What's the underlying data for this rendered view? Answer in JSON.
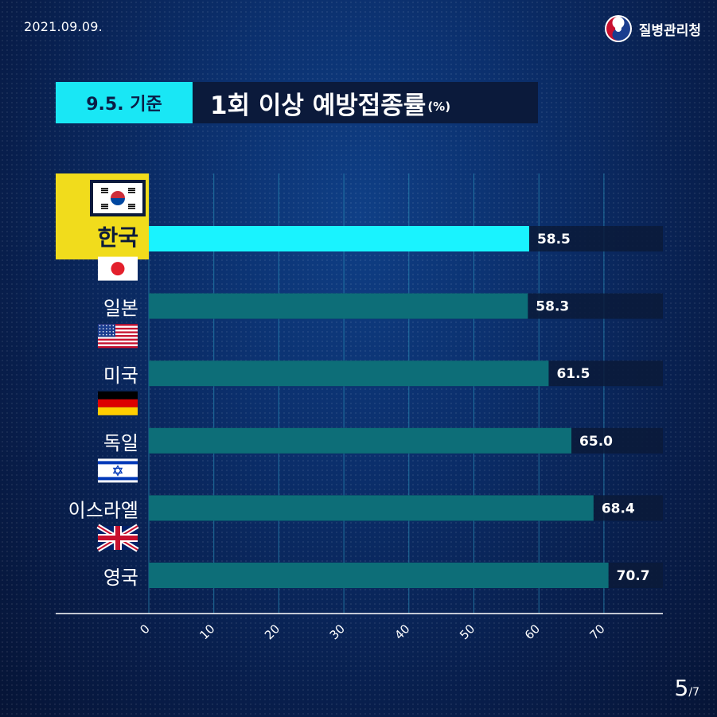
{
  "header": {
    "date": "2021.09.09.",
    "brand": "질병관리청",
    "badge": "9.5. 기준",
    "title": "1회 이상 예방접종률",
    "title_unit": "(%)"
  },
  "page": {
    "current": "5",
    "total": "/7"
  },
  "colors": {
    "highlight_bar": "#19f3ff",
    "bar": "#0d6e78",
    "track": "#0a1a38",
    "highlight_label_bg": "#f1dc1c",
    "gridline": "#2a8fb8"
  },
  "chart_data": {
    "type": "bar",
    "orientation": "horizontal",
    "title": "1회 이상 예방접종률(%)",
    "categories": [
      "한국",
      "일본",
      "미국",
      "독일",
      "이스라엘",
      "영국"
    ],
    "flags": [
      "korea-flag-icon",
      "japan-flag-icon",
      "usa-flag-icon",
      "germany-flag-icon",
      "israel-flag-icon",
      "uk-flag-icon"
    ],
    "values": [
      58.5,
      58.3,
      61.5,
      65.0,
      68.4,
      70.7
    ],
    "value_labels": [
      "58.5",
      "58.3",
      "61.5",
      "65.0",
      "68.4",
      "70.7"
    ],
    "highlight": "한국",
    "ticks": [
      "0",
      "10",
      "20",
      "30",
      "40",
      "50",
      "60",
      "70"
    ],
    "xlim": [
      0,
      80
    ],
    "grid": true
  }
}
